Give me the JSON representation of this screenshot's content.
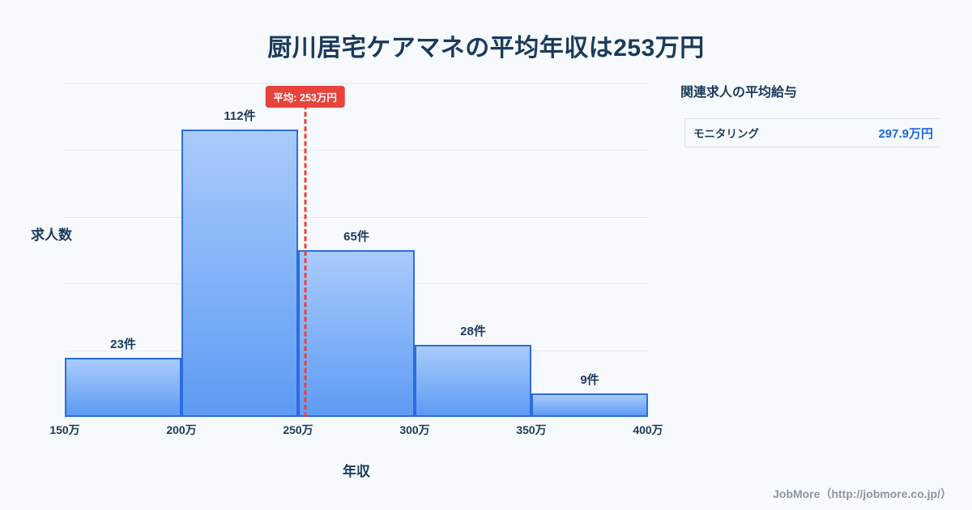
{
  "title": "厨川居宅ケアマネの平均年収は253万円",
  "chart_data": {
    "type": "bar",
    "title": "厨川居宅ケアマネの平均年収は253万円",
    "xlabel": "年収",
    "ylabel": "求人数",
    "x_tick_labels": [
      "150万",
      "200万",
      "250万",
      "300万",
      "350万",
      "400万"
    ],
    "x_range": [
      150,
      400
    ],
    "bins": [
      "150万-200万",
      "200万-250万",
      "250万-300万",
      "300万-350万",
      "350万-400万"
    ],
    "values": [
      23,
      112,
      65,
      28,
      9
    ],
    "bar_labels": [
      "23件",
      "112件",
      "65件",
      "28件",
      "9件"
    ],
    "unit": "件",
    "ylim": [
      0,
      130
    ],
    "grid": "horizontal",
    "legend": "none",
    "average": {
      "value": 253,
      "label": "平均: 253万円"
    }
  },
  "side_panel": {
    "title": "関連求人の平均給与",
    "rows": [
      {
        "label": "モニタリング",
        "value": "297.9万円"
      }
    ]
  },
  "footer": {
    "credit": "JobMore（http://jobmore.co.jp/）"
  },
  "colors": {
    "background": "#f7fafd",
    "heading": "#1b3a5c",
    "bar_fill_top": "#a9cbfb",
    "bar_fill_bottom": "#5e9bf4",
    "bar_border": "#2d6cdf",
    "average_red": "#e8433c",
    "value_blue": "#2166e0",
    "gridline": "#e3e8f0",
    "footer_gray": "#8b95a4"
  }
}
